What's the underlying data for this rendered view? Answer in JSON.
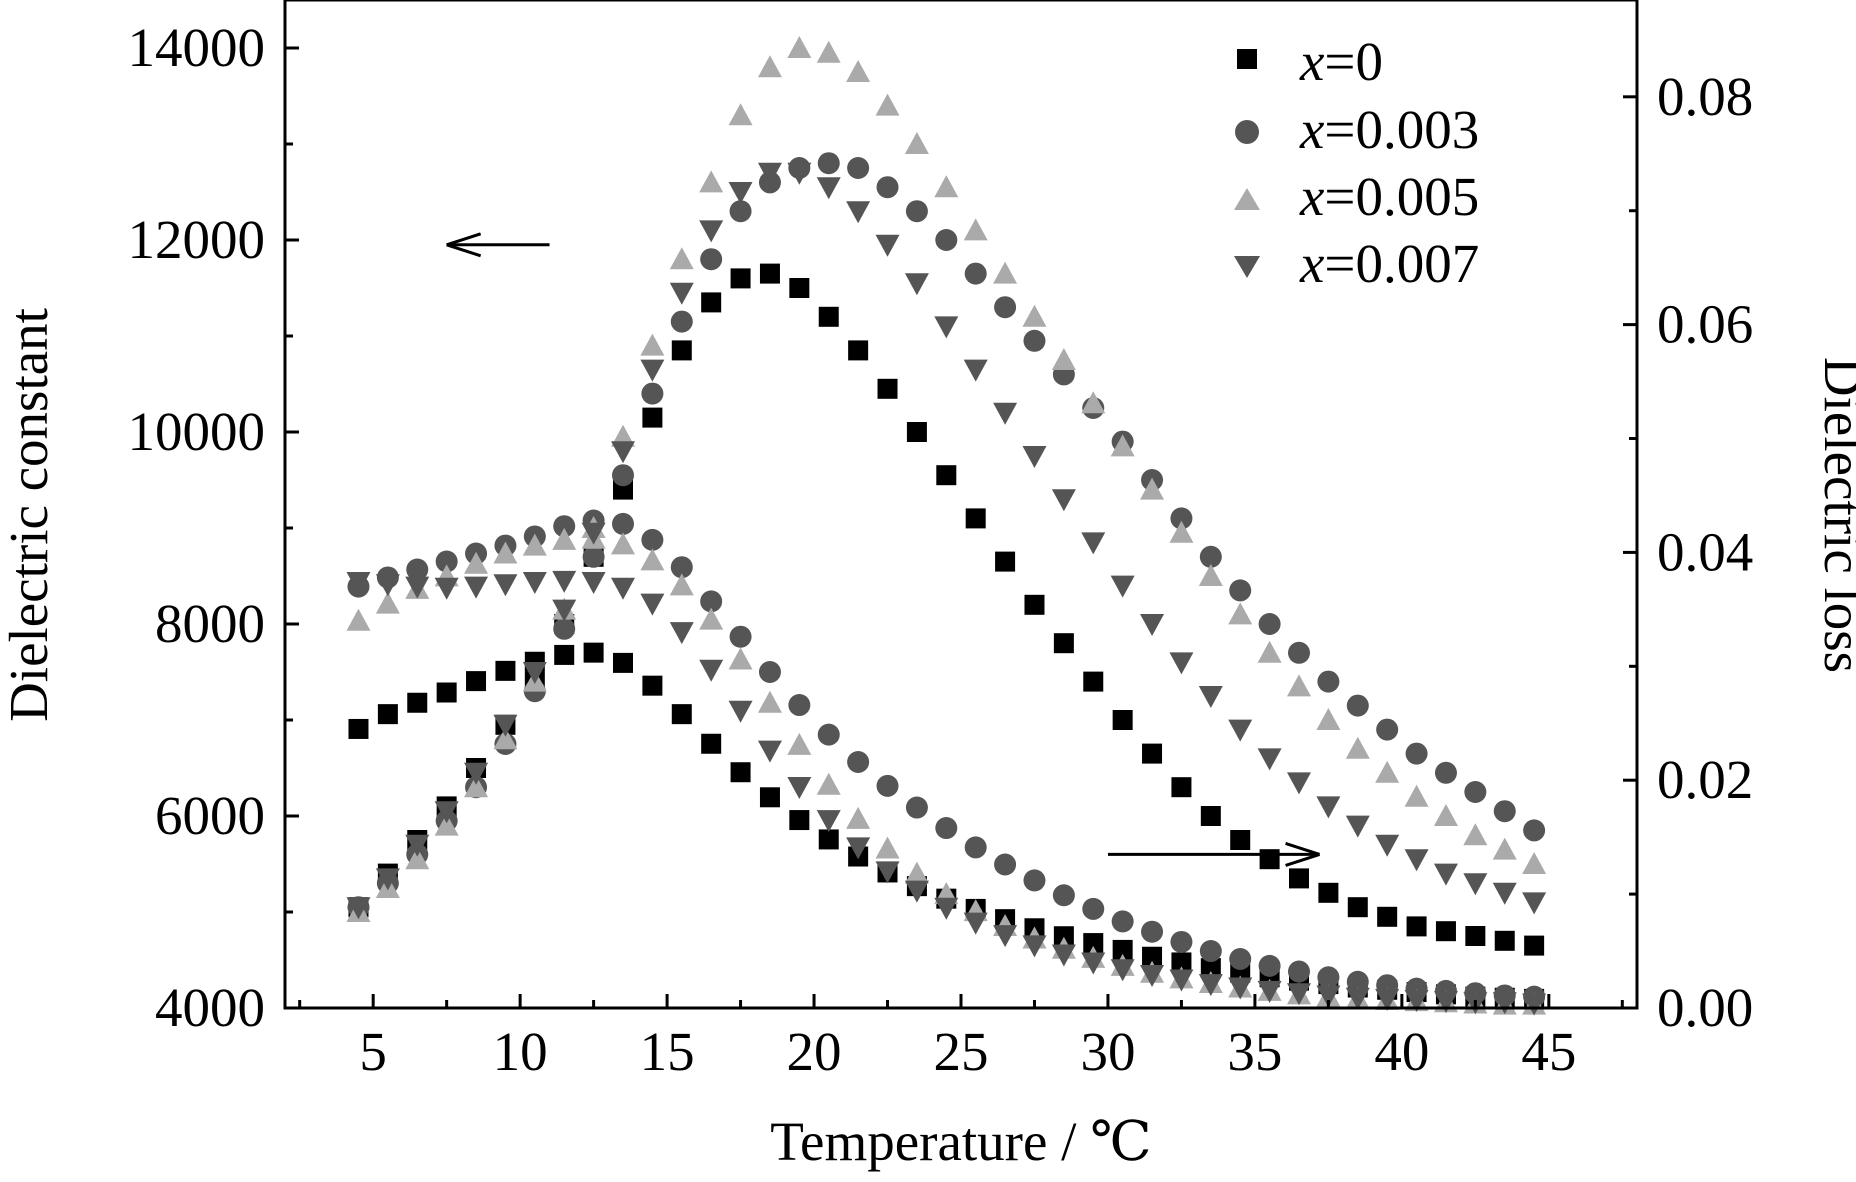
{
  "chart_data": {
    "type": "scatter",
    "xlabel": "Temperature / ℃",
    "ylabel_left": "Dielectric constant",
    "ylabel_right": "Dielectric loss",
    "xlim": [
      2,
      48
    ],
    "ylim_left": [
      4000,
      14500
    ],
    "ylim_right": [
      0,
      0.0885
    ],
    "xticks": [
      5,
      10,
      15,
      20,
      25,
      30,
      35,
      40,
      45
    ],
    "yticks_left": [
      4000,
      6000,
      8000,
      10000,
      12000,
      14000
    ],
    "yticks_right": [
      0.0,
      0.02,
      0.04,
      0.06,
      0.08
    ],
    "xtick_labels": [
      "5",
      "10",
      "15",
      "20",
      "25",
      "30",
      "35",
      "40",
      "45"
    ],
    "ytick_labels_left": [
      "4000",
      "6000",
      "8000",
      "10000",
      "12000",
      "14000"
    ],
    "ytick_labels_right": [
      "0.00",
      "0.02",
      "0.04",
      "0.06",
      "0.08"
    ],
    "grid": false,
    "legend_position": "top-right",
    "annotations": [
      {
        "text": "arrow pointing left to dielectric constant axis",
        "from": [
          11,
          11950
        ],
        "to": [
          7.5,
          11950
        ]
      },
      {
        "text": "arrow pointing right to dielectric loss axis",
        "from": [
          30,
          5600
        ],
        "to": [
          37.2,
          5600
        ]
      }
    ],
    "x": [
      4.5,
      5.5,
      6.5,
      7.5,
      8.5,
      9.5,
      10.5,
      11.5,
      12.5,
      13.5,
      14.5,
      15.5,
      16.5,
      17.5,
      18.5,
      19.5,
      20.5,
      21.5,
      22.5,
      23.5,
      24.5,
      25.5,
      26.5,
      27.5,
      28.5,
      29.5,
      30.5,
      31.5,
      32.5,
      33.5,
      34.5,
      35.5,
      36.5,
      37.5,
      38.5,
      39.5,
      40.5,
      41.5,
      42.5,
      43.5,
      44.5
    ],
    "series": [
      {
        "name": "x=0",
        "marker": "square",
        "color": "#000000",
        "constant": [
          5050,
          5400,
          5750,
          6100,
          6500,
          6950,
          7400,
          8000,
          8700,
          9400,
          10150,
          10850,
          11350,
          11600,
          11650,
          11500,
          11200,
          10850,
          10450,
          10000,
          9550,
          9100,
          8650,
          8200,
          7800,
          7400,
          7000,
          6650,
          6300,
          6000,
          5750,
          5550,
          5350,
          5200,
          5050,
          4950,
          4850,
          4800,
          4750,
          4700,
          4650
        ],
        "loss": [
          0.0245,
          0.0258,
          0.0268,
          0.0277,
          0.0287,
          0.0296,
          0.0304,
          0.031,
          0.0312,
          0.0303,
          0.0283,
          0.0258,
          0.0232,
          0.0207,
          0.0185,
          0.0165,
          0.0148,
          0.0133,
          0.0119,
          0.0107,
          0.0096,
          0.0087,
          0.0078,
          0.007,
          0.0063,
          0.0057,
          0.0051,
          0.0045,
          0.004,
          0.0035,
          0.0031,
          0.0027,
          0.0024,
          0.0021,
          0.0018,
          0.0016,
          0.0014,
          0.0012,
          0.001,
          0.0009,
          0.0008
        ]
      },
      {
        "name": "x=0.003",
        "marker": "circle",
        "color": "#555555",
        "constant": [
          5050,
          5300,
          5600,
          5950,
          6300,
          6750,
          7300,
          7950,
          8700,
          9550,
          10400,
          11150,
          11800,
          12300,
          12600,
          12750,
          12800,
          12750,
          12550,
          12300,
          12000,
          11650,
          11300,
          10950,
          10600,
          10250,
          9900,
          9500,
          9100,
          8700,
          8350,
          8000,
          7700,
          7400,
          7150,
          6900,
          6650,
          6450,
          6250,
          6050,
          5850
        ],
        "loss": [
          0.037,
          0.0378,
          0.0385,
          0.0392,
          0.0399,
          0.0406,
          0.0414,
          0.0423,
          0.0428,
          0.0425,
          0.0411,
          0.0387,
          0.0357,
          0.0326,
          0.0295,
          0.0266,
          0.024,
          0.0216,
          0.0195,
          0.0176,
          0.0158,
          0.0141,
          0.0126,
          0.0112,
          0.0099,
          0.0087,
          0.0076,
          0.0067,
          0.0058,
          0.005,
          0.0043,
          0.0037,
          0.0032,
          0.0027,
          0.0023,
          0.002,
          0.0017,
          0.0015,
          0.0013,
          0.0011,
          0.001
        ]
      },
      {
        "name": "x=0.005",
        "marker": "triangle-up",
        "color": "#aaaaaa",
        "constant": [
          5000,
          5250,
          5550,
          5900,
          6300,
          6800,
          7400,
          8150,
          9000,
          9950,
          10900,
          11800,
          12600,
          13300,
          13800,
          14000,
          13950,
          13750,
          13400,
          13000,
          12550,
          12100,
          11650,
          11200,
          10750,
          10300,
          9850,
          9400,
          8950,
          8500,
          8100,
          7700,
          7350,
          7000,
          6700,
          6450,
          6200,
          6000,
          5800,
          5650,
          5500
        ],
        "loss": [
          0.034,
          0.0355,
          0.0368,
          0.0379,
          0.039,
          0.0399,
          0.0406,
          0.0411,
          0.0412,
          0.0407,
          0.0393,
          0.0371,
          0.0341,
          0.0306,
          0.0268,
          0.0231,
          0.0196,
          0.0166,
          0.014,
          0.0118,
          0.01,
          0.0085,
          0.0072,
          0.0061,
          0.0052,
          0.0044,
          0.0037,
          0.0031,
          0.0026,
          0.0022,
          0.0018,
          0.0015,
          0.0012,
          0.001,
          0.0008,
          0.0007,
          0.0006,
          0.0005,
          0.0004,
          0.0003,
          0.0003
        ]
      },
      {
        "name": "x=0.007",
        "marker": "triangle-down",
        "color": "#555555",
        "constant": [
          5050,
          5350,
          5700,
          6050,
          6450,
          6950,
          7500,
          8150,
          8950,
          9800,
          10650,
          11450,
          12100,
          12500,
          12700,
          12700,
          12550,
          12300,
          11950,
          11550,
          11100,
          10650,
          10200,
          9750,
          9300,
          8850,
          8400,
          8000,
          7600,
          7250,
          6900,
          6600,
          6350,
          6100,
          5900,
          5700,
          5550,
          5400,
          5300,
          5200,
          5100
        ],
        "loss": [
          0.0374,
          0.0372,
          0.037,
          0.0369,
          0.037,
          0.0372,
          0.0374,
          0.0375,
          0.0374,
          0.0369,
          0.0355,
          0.033,
          0.0297,
          0.0261,
          0.0226,
          0.0194,
          0.0165,
          0.0141,
          0.012,
          0.0103,
          0.0088,
          0.0075,
          0.0064,
          0.0055,
          0.0047,
          0.004,
          0.0034,
          0.0029,
          0.0025,
          0.0021,
          0.0018,
          0.0015,
          0.0013,
          0.0011,
          0.0009,
          0.0008,
          0.0007,
          0.0006,
          0.0005,
          0.0005,
          0.0004
        ]
      }
    ]
  },
  "legend": {
    "items": [
      {
        "prefix": "x",
        "suffix": "=0"
      },
      {
        "prefix": "x",
        "suffix": "=0.003"
      },
      {
        "prefix": "x",
        "suffix": "=0.005"
      },
      {
        "prefix": "x",
        "suffix": "=0.007"
      }
    ]
  }
}
